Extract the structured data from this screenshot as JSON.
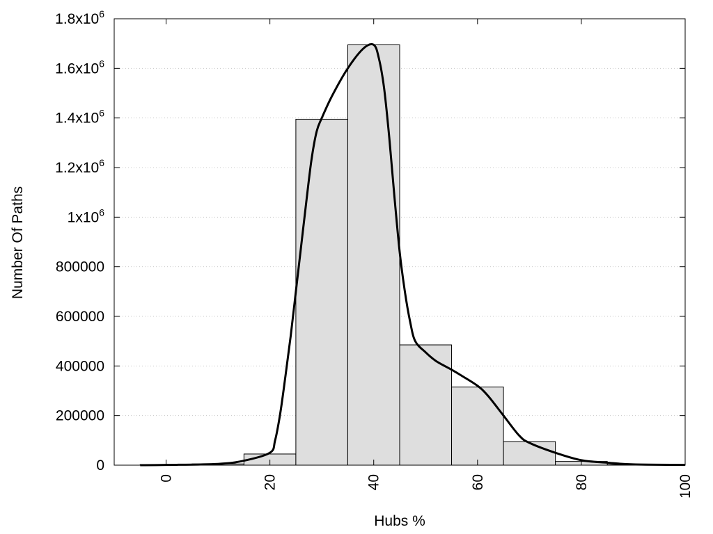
{
  "chart_data": {
    "type": "bar",
    "title": "",
    "xlabel": "Hubs %",
    "ylabel": "Number Of Paths",
    "xlim": [
      -10,
      100
    ],
    "ylim": [
      0,
      1800000
    ],
    "grid": true,
    "legend": "none",
    "bar_color": "#dedede",
    "curve_color": "#000000",
    "x_ticks": [
      {
        "value": 0,
        "label": "0"
      },
      {
        "value": 20,
        "label": "20"
      },
      {
        "value": 40,
        "label": "40"
      },
      {
        "value": 60,
        "label": "60"
      },
      {
        "value": 80,
        "label": "80"
      },
      {
        "value": 100,
        "label": "100"
      }
    ],
    "y_ticks": [
      {
        "value": 0,
        "base": "0",
        "sup": ""
      },
      {
        "value": 200000,
        "base": "200000",
        "sup": ""
      },
      {
        "value": 400000,
        "base": "400000",
        "sup": ""
      },
      {
        "value": 600000,
        "base": "600000",
        "sup": ""
      },
      {
        "value": 800000,
        "base": "800000",
        "sup": ""
      },
      {
        "value": 1000000,
        "base": "1x10",
        "sup": "6"
      },
      {
        "value": 1200000,
        "base": "1.2x10",
        "sup": "6"
      },
      {
        "value": 1400000,
        "base": "1.4x10",
        "sup": "6"
      },
      {
        "value": 1600000,
        "base": "1.6x10",
        "sup": "6"
      },
      {
        "value": 1800000,
        "base": "1.8x10",
        "sup": "6"
      }
    ],
    "bins": [
      {
        "x0": -5,
        "x1": 5,
        "value": 2000
      },
      {
        "x0": 5,
        "x1": 15,
        "value": 5000
      },
      {
        "x0": 15,
        "x1": 25,
        "value": 45000
      },
      {
        "x0": 25,
        "x1": 35,
        "value": 1395000
      },
      {
        "x0": 35,
        "x1": 45,
        "value": 1695000
      },
      {
        "x0": 45,
        "x1": 55,
        "value": 485000
      },
      {
        "x0": 55,
        "x1": 65,
        "value": 315000
      },
      {
        "x0": 65,
        "x1": 75,
        "value": 95000
      },
      {
        "x0": 75,
        "x1": 85,
        "value": 15000
      },
      {
        "x0": 85,
        "x1": 95,
        "value": 2000
      }
    ],
    "curve": [
      {
        "x": -5,
        "y": 0
      },
      {
        "x": 0,
        "y": 1000
      },
      {
        "x": 10,
        "y": 5000
      },
      {
        "x": 15,
        "y": 18000
      },
      {
        "x": 20,
        "y": 50000
      },
      {
        "x": 21,
        "y": 100000
      },
      {
        "x": 22,
        "y": 210000
      },
      {
        "x": 23,
        "y": 360000
      },
      {
        "x": 24,
        "y": 520000
      },
      {
        "x": 25,
        "y": 700000
      },
      {
        "x": 26,
        "y": 880000
      },
      {
        "x": 27,
        "y": 1060000
      },
      {
        "x": 28,
        "y": 1230000
      },
      {
        "x": 29,
        "y": 1345000
      },
      {
        "x": 30,
        "y": 1400000
      },
      {
        "x": 32,
        "y": 1490000
      },
      {
        "x": 35,
        "y": 1600000
      },
      {
        "x": 38,
        "y": 1680000
      },
      {
        "x": 40,
        "y": 1695000
      },
      {
        "x": 41,
        "y": 1640000
      },
      {
        "x": 42,
        "y": 1520000
      },
      {
        "x": 43,
        "y": 1320000
      },
      {
        "x": 44,
        "y": 1080000
      },
      {
        "x": 45,
        "y": 860000
      },
      {
        "x": 46,
        "y": 700000
      },
      {
        "x": 47,
        "y": 580000
      },
      {
        "x": 48,
        "y": 500000
      },
      {
        "x": 50,
        "y": 455000
      },
      {
        "x": 52,
        "y": 420000
      },
      {
        "x": 55,
        "y": 385000
      },
      {
        "x": 57,
        "y": 360000
      },
      {
        "x": 60,
        "y": 320000
      },
      {
        "x": 62,
        "y": 280000
      },
      {
        "x": 65,
        "y": 200000
      },
      {
        "x": 68,
        "y": 120000
      },
      {
        "x": 70,
        "y": 90000
      },
      {
        "x": 75,
        "y": 50000
      },
      {
        "x": 80,
        "y": 20000
      },
      {
        "x": 85,
        "y": 10000
      },
      {
        "x": 90,
        "y": 3000
      },
      {
        "x": 100,
        "y": 1000
      }
    ]
  }
}
